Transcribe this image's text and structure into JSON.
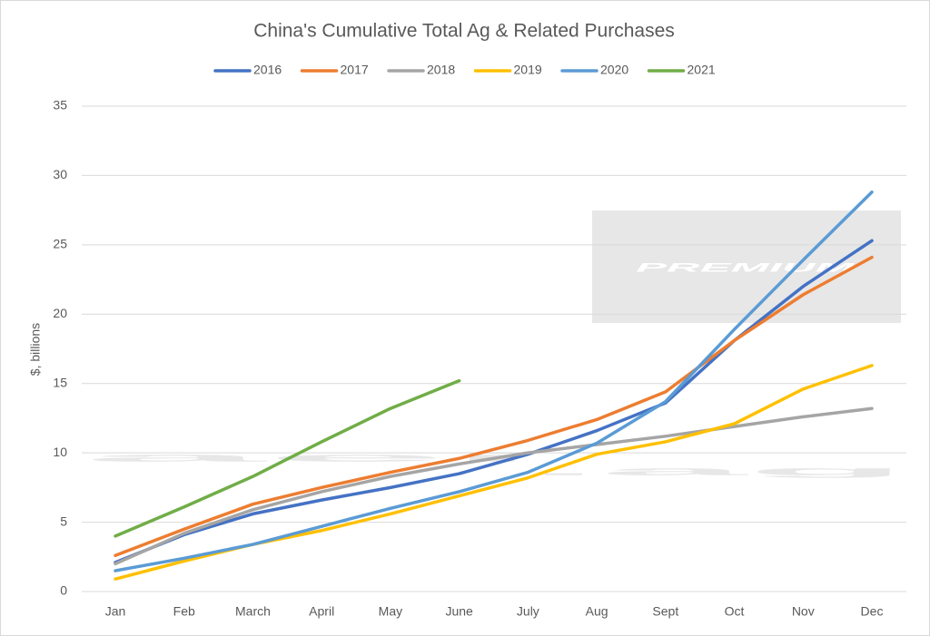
{
  "chart_data": {
    "type": "line",
    "title": "China's Cumulative Total Ag & Related Purchases",
    "y_label": "$, billions",
    "watermark": [
      "aei",
      ".ag"
    ],
    "watermark_badge": "PREMIUM",
    "categories": [
      "Jan",
      "Feb",
      "March",
      "April",
      "May",
      "June",
      "July",
      "Aug",
      "Sept",
      "Oct",
      "Nov",
      "Dec"
    ],
    "series": [
      {
        "name": "2016",
        "color": "#4472c4",
        "values": [
          2.1,
          4.1,
          5.6,
          6.6,
          7.5,
          8.5,
          9.9,
          11.6,
          13.6,
          18.1,
          22.0,
          25.3
        ]
      },
      {
        "name": "2017",
        "color": "#ed7d31",
        "values": [
          2.6,
          4.5,
          6.3,
          7.5,
          8.6,
          9.6,
          10.9,
          12.4,
          14.4,
          18.1,
          21.4,
          24.1
        ]
      },
      {
        "name": "2018",
        "color": "#a5a5a5",
        "values": [
          2.0,
          4.2,
          5.9,
          7.2,
          8.3,
          9.2,
          10.0,
          10.6,
          11.2,
          11.9,
          12.6,
          13.2
        ]
      },
      {
        "name": "2019",
        "color": "#ffc000",
        "values": [
          0.9,
          2.2,
          3.4,
          4.4,
          5.6,
          6.9,
          8.2,
          9.9,
          10.8,
          12.1,
          14.6,
          16.3
        ]
      },
      {
        "name": "2020",
        "color": "#5b9bd5",
        "values": [
          1.5,
          2.4,
          3.4,
          4.7,
          6.0,
          7.2,
          8.6,
          10.7,
          13.7,
          18.9,
          23.9,
          28.8
        ]
      },
      {
        "name": "2021",
        "color": "#70ad47",
        "values": [
          4.0,
          6.1,
          8.3,
          10.8,
          13.2,
          15.2,
          null,
          null,
          null,
          null,
          null,
          null
        ]
      }
    ],
    "ylim": [
      0,
      35
    ],
    "yticks": [
      0,
      5,
      10,
      15,
      20,
      25,
      30,
      35
    ],
    "grid": true,
    "legend": "top"
  }
}
